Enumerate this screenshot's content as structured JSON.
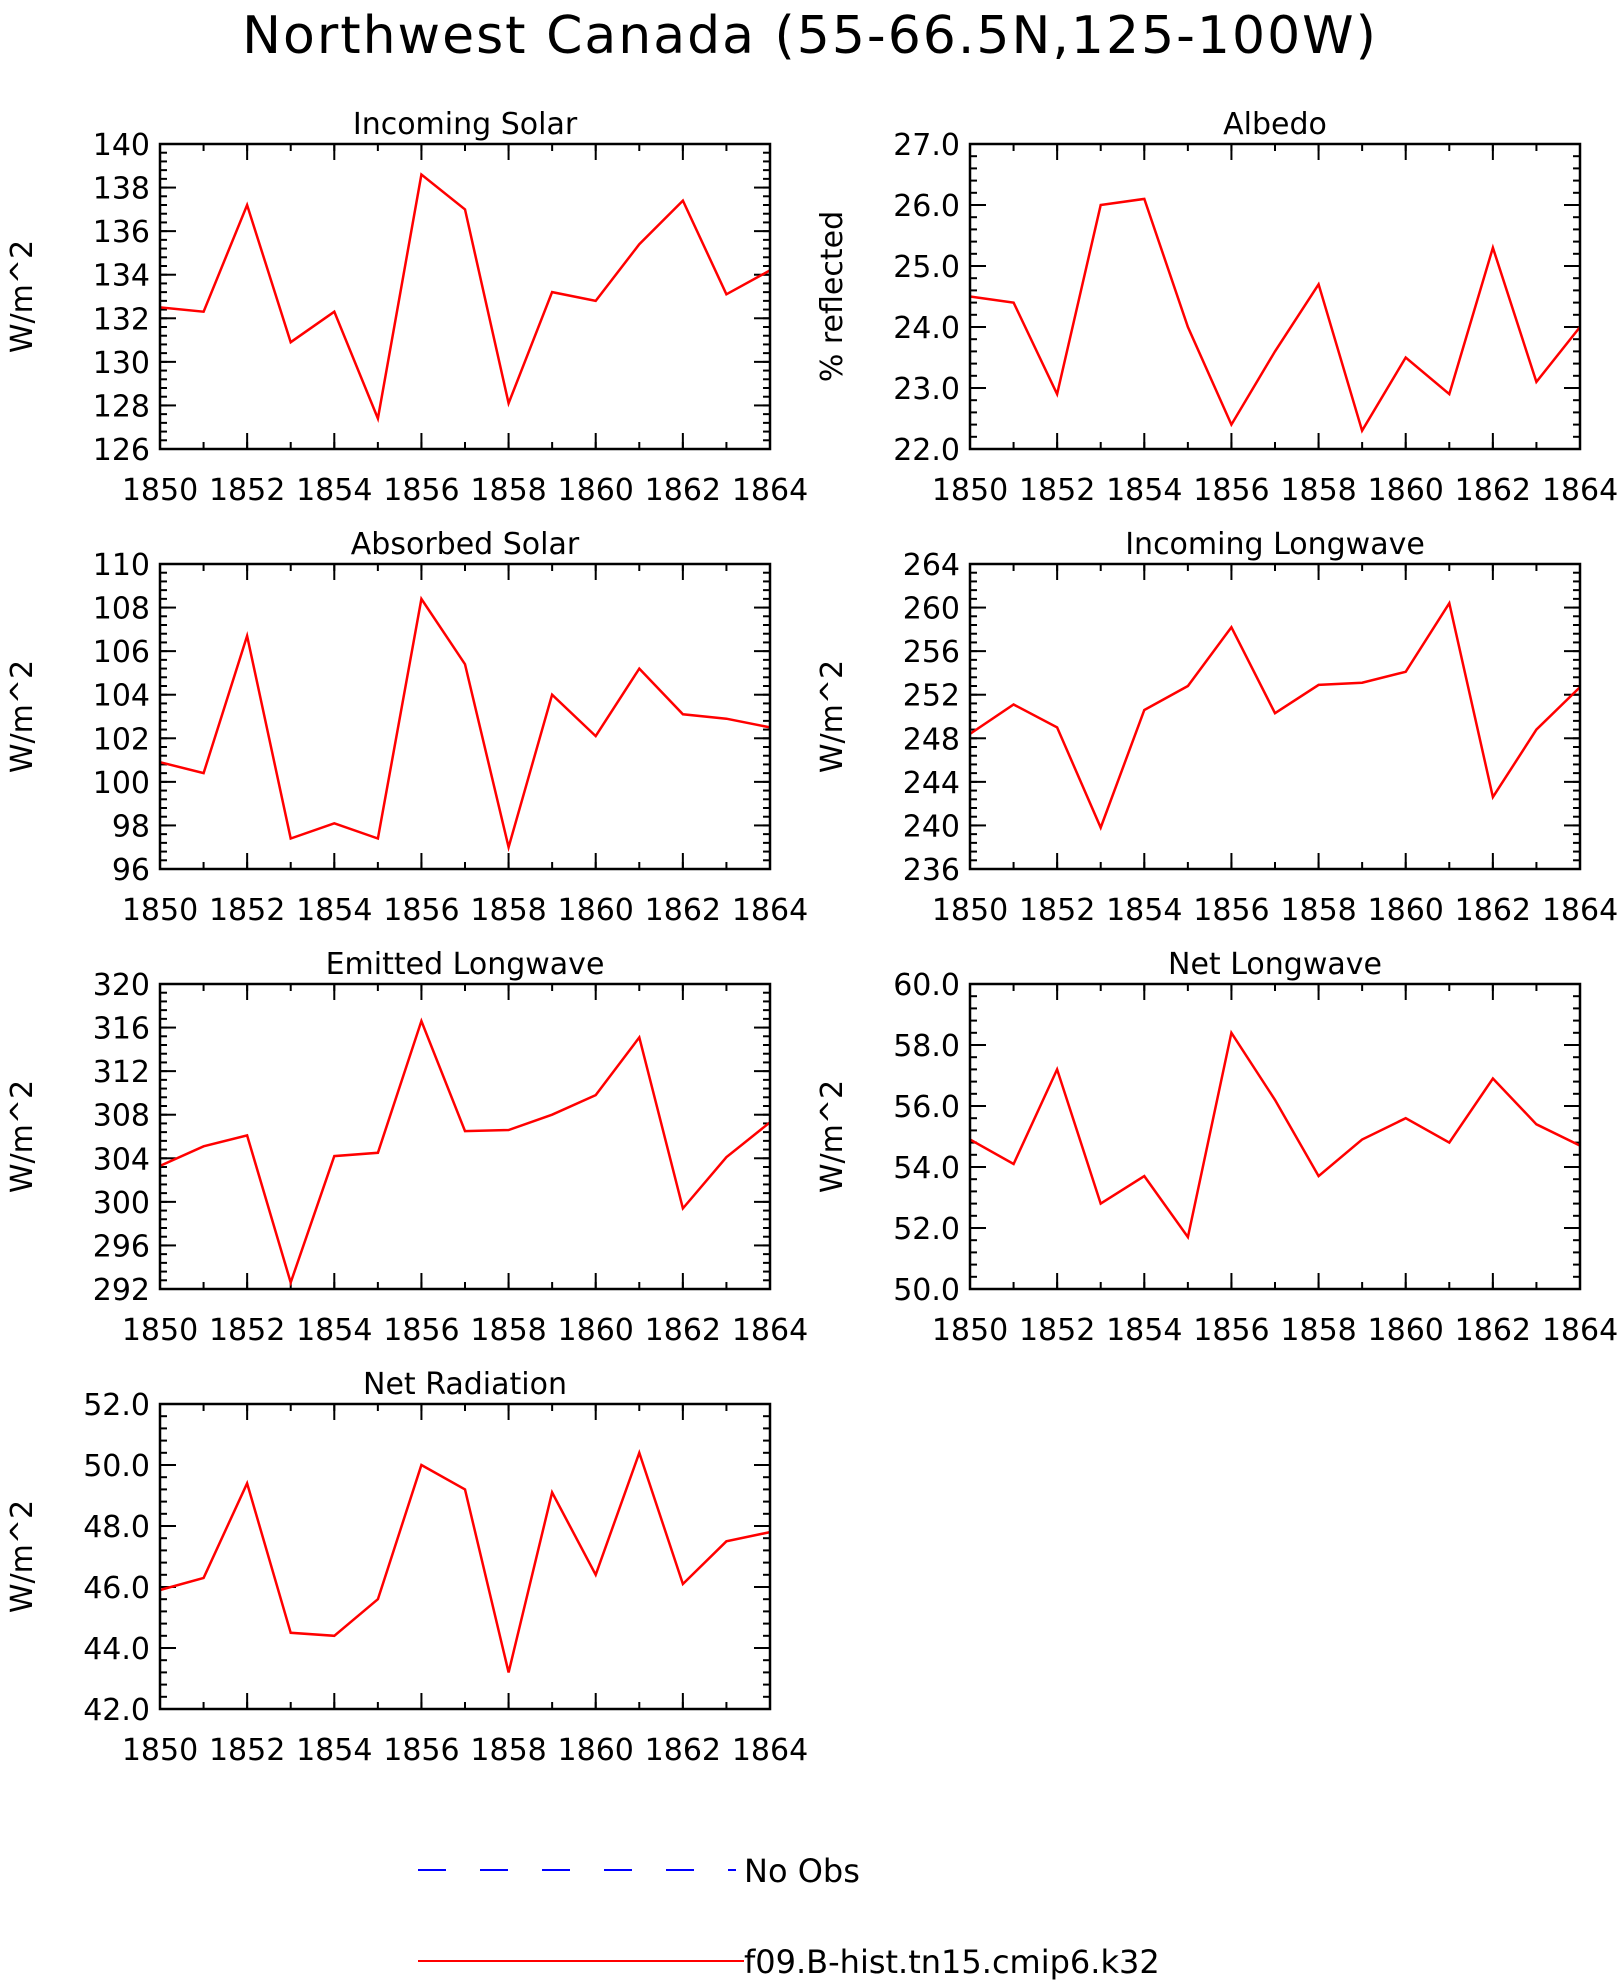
{
  "title": "Northwest Canada (55-66.5N,125-100W)",
  "colors": {
    "model": "#ff0000",
    "obs": "#0000ff",
    "axis": "#000000"
  },
  "legend": [
    {
      "label": "No Obs",
      "style": "dashed",
      "color": "#0000ff"
    },
    {
      "label": "f09.B-hist.tn15.cmip6.k32",
      "style": "solid",
      "color": "#ff0000"
    }
  ],
  "chart_data": [
    {
      "type": "line",
      "title": "Incoming Solar",
      "ylabel": "W/m^2",
      "x": [
        1850,
        1851,
        1852,
        1853,
        1854,
        1855,
        1856,
        1857,
        1858,
        1859,
        1860,
        1861,
        1862,
        1863,
        1864
      ],
      "ylim": [
        126,
        140
      ],
      "yticks": [
        "126",
        "128",
        "130",
        "132",
        "134",
        "136",
        "138",
        "140"
      ],
      "xticks": [
        "1850",
        "1852",
        "1854",
        "1856",
        "1858",
        "1860",
        "1862",
        "1864"
      ],
      "series": [
        {
          "name": "f09.B-hist.tn15.cmip6.k32",
          "values": [
            132.5,
            132.3,
            137.2,
            130.9,
            132.3,
            127.4,
            138.6,
            137.0,
            128.1,
            133.2,
            132.8,
            135.4,
            137.4,
            133.1,
            134.2
          ]
        }
      ]
    },
    {
      "type": "line",
      "title": "Albedo",
      "ylabel": "% reflected",
      "x": [
        1850,
        1851,
        1852,
        1853,
        1854,
        1855,
        1856,
        1857,
        1858,
        1859,
        1860,
        1861,
        1862,
        1863,
        1864
      ],
      "ylim": [
        22.0,
        27.0
      ],
      "yticks": [
        "22.0",
        "23.0",
        "24.0",
        "25.0",
        "26.0",
        "27.0"
      ],
      "xticks": [
        "1850",
        "1852",
        "1854",
        "1856",
        "1858",
        "1860",
        "1862",
        "1864"
      ],
      "series": [
        {
          "name": "f09.B-hist.tn15.cmip6.k32",
          "values": [
            24.5,
            24.4,
            22.9,
            26.0,
            26.1,
            24.0,
            22.4,
            23.6,
            24.7,
            22.3,
            23.5,
            22.9,
            25.3,
            23.1,
            24.0
          ]
        }
      ]
    },
    {
      "type": "line",
      "title": "Absorbed Solar",
      "ylabel": "W/m^2",
      "x": [
        1850,
        1851,
        1852,
        1853,
        1854,
        1855,
        1856,
        1857,
        1858,
        1859,
        1860,
        1861,
        1862,
        1863,
        1864
      ],
      "ylim": [
        96,
        110
      ],
      "yticks": [
        "96",
        "98",
        "100",
        "102",
        "104",
        "106",
        "108",
        "110"
      ],
      "xticks": [
        "1850",
        "1852",
        "1854",
        "1856",
        "1858",
        "1860",
        "1862",
        "1864"
      ],
      "series": [
        {
          "name": "f09.B-hist.tn15.cmip6.k32",
          "values": [
            100.9,
            100.4,
            106.7,
            97.4,
            98.1,
            97.4,
            108.4,
            105.4,
            97.0,
            104.0,
            102.1,
            105.2,
            103.1,
            102.9,
            102.5
          ]
        }
      ]
    },
    {
      "type": "line",
      "title": "Incoming Longwave",
      "ylabel": "W/m^2",
      "x": [
        1850,
        1851,
        1852,
        1853,
        1854,
        1855,
        1856,
        1857,
        1858,
        1859,
        1860,
        1861,
        1862,
        1863,
        1864
      ],
      "ylim": [
        236,
        264
      ],
      "yticks": [
        "236",
        "240",
        "244",
        "248",
        "252",
        "256",
        "260",
        "264"
      ],
      "xticks": [
        "1850",
        "1852",
        "1854",
        "1856",
        "1858",
        "1860",
        "1862",
        "1864"
      ],
      "series": [
        {
          "name": "f09.B-hist.tn15.cmip6.k32",
          "values": [
            248.4,
            251.1,
            249.0,
            239.8,
            250.6,
            252.8,
            258.2,
            250.3,
            252.9,
            253.1,
            254.1,
            260.4,
            242.6,
            248.8,
            252.7
          ]
        }
      ]
    },
    {
      "type": "line",
      "title": "Emitted Longwave",
      "ylabel": "W/m^2",
      "x": [
        1850,
        1851,
        1852,
        1853,
        1854,
        1855,
        1856,
        1857,
        1858,
        1859,
        1860,
        1861,
        1862,
        1863,
        1864
      ],
      "ylim": [
        292,
        320
      ],
      "yticks": [
        "292",
        "296",
        "300",
        "304",
        "308",
        "312",
        "316",
        "320"
      ],
      "xticks": [
        "1850",
        "1852",
        "1854",
        "1856",
        "1858",
        "1860",
        "1862",
        "1864"
      ],
      "series": [
        {
          "name": "f09.B-hist.tn15.cmip6.k32",
          "values": [
            303.3,
            305.1,
            306.1,
            292.6,
            304.2,
            304.5,
            316.6,
            306.5,
            306.6,
            308.0,
            309.8,
            315.1,
            299.4,
            304.1,
            307.3
          ]
        }
      ]
    },
    {
      "type": "line",
      "title": "Net Longwave",
      "ylabel": "W/m^2",
      "x": [
        1850,
        1851,
        1852,
        1853,
        1854,
        1855,
        1856,
        1857,
        1858,
        1859,
        1860,
        1861,
        1862,
        1863,
        1864
      ],
      "ylim": [
        50.0,
        60.0
      ],
      "yticks": [
        "50.0",
        "52.0",
        "54.0",
        "56.0",
        "58.0",
        "60.0"
      ],
      "xticks": [
        "1850",
        "1852",
        "1854",
        "1856",
        "1858",
        "1860",
        "1862",
        "1864"
      ],
      "series": [
        {
          "name": "f09.B-hist.tn15.cmip6.k32",
          "values": [
            54.9,
            54.1,
            57.2,
            52.8,
            53.7,
            51.7,
            58.4,
            56.2,
            53.7,
            54.9,
            55.6,
            54.8,
            56.9,
            55.4,
            54.7
          ]
        }
      ]
    },
    {
      "type": "line",
      "title": "Net Radiation",
      "ylabel": "W/m^2",
      "x": [
        1850,
        1851,
        1852,
        1853,
        1854,
        1855,
        1856,
        1857,
        1858,
        1859,
        1860,
        1861,
        1862,
        1863,
        1864
      ],
      "ylim": [
        42.0,
        52.0
      ],
      "yticks": [
        "42.0",
        "44.0",
        "46.0",
        "48.0",
        "50.0",
        "52.0"
      ],
      "xticks": [
        "1850",
        "1852",
        "1854",
        "1856",
        "1858",
        "1860",
        "1862",
        "1864"
      ],
      "series": [
        {
          "name": "f09.B-hist.tn15.cmip6.k32",
          "values": [
            45.9,
            46.3,
            49.4,
            44.5,
            44.4,
            45.6,
            50.0,
            49.2,
            43.2,
            49.1,
            46.4,
            50.4,
            46.1,
            47.5,
            47.8
          ]
        }
      ]
    }
  ]
}
